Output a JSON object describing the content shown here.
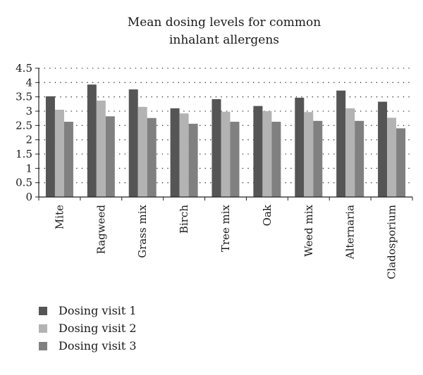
{
  "chart_data": {
    "type": "bar",
    "title_lines": [
      "Mean dosing levels for common",
      "inhalant allergens"
    ],
    "categories": [
      "Mite",
      "Ragweed",
      "Grass mix",
      "Birch",
      "Tree mix",
      "Oak",
      "Weed mix",
      "Alternaria",
      "Cladosporium"
    ],
    "series": [
      {
        "name": "Dosing visit 1",
        "color": "#555555",
        "values": [
          3.52,
          3.93,
          3.76,
          3.1,
          3.42,
          3.18,
          3.47,
          3.72,
          3.33
        ]
      },
      {
        "name": "Dosing visit 2",
        "color": "#b3b3b3",
        "values": [
          3.05,
          3.37,
          3.15,
          2.92,
          2.98,
          3.0,
          2.97,
          3.1,
          2.77
        ]
      },
      {
        "name": "Dosing visit 3",
        "color": "#808080",
        "values": [
          2.63,
          2.82,
          2.76,
          2.56,
          2.63,
          2.63,
          2.66,
          2.66,
          2.4
        ]
      }
    ],
    "yticks": [
      "0",
      "0.5",
      "1",
      "1.5",
      "2",
      "2.5",
      "3",
      "3.5",
      "4",
      "4.5"
    ],
    "ylim": [
      0,
      4.5
    ],
    "grid": "dotted horizontal",
    "legend_position": "bottom-left",
    "xlabel": "",
    "ylabel": ""
  }
}
